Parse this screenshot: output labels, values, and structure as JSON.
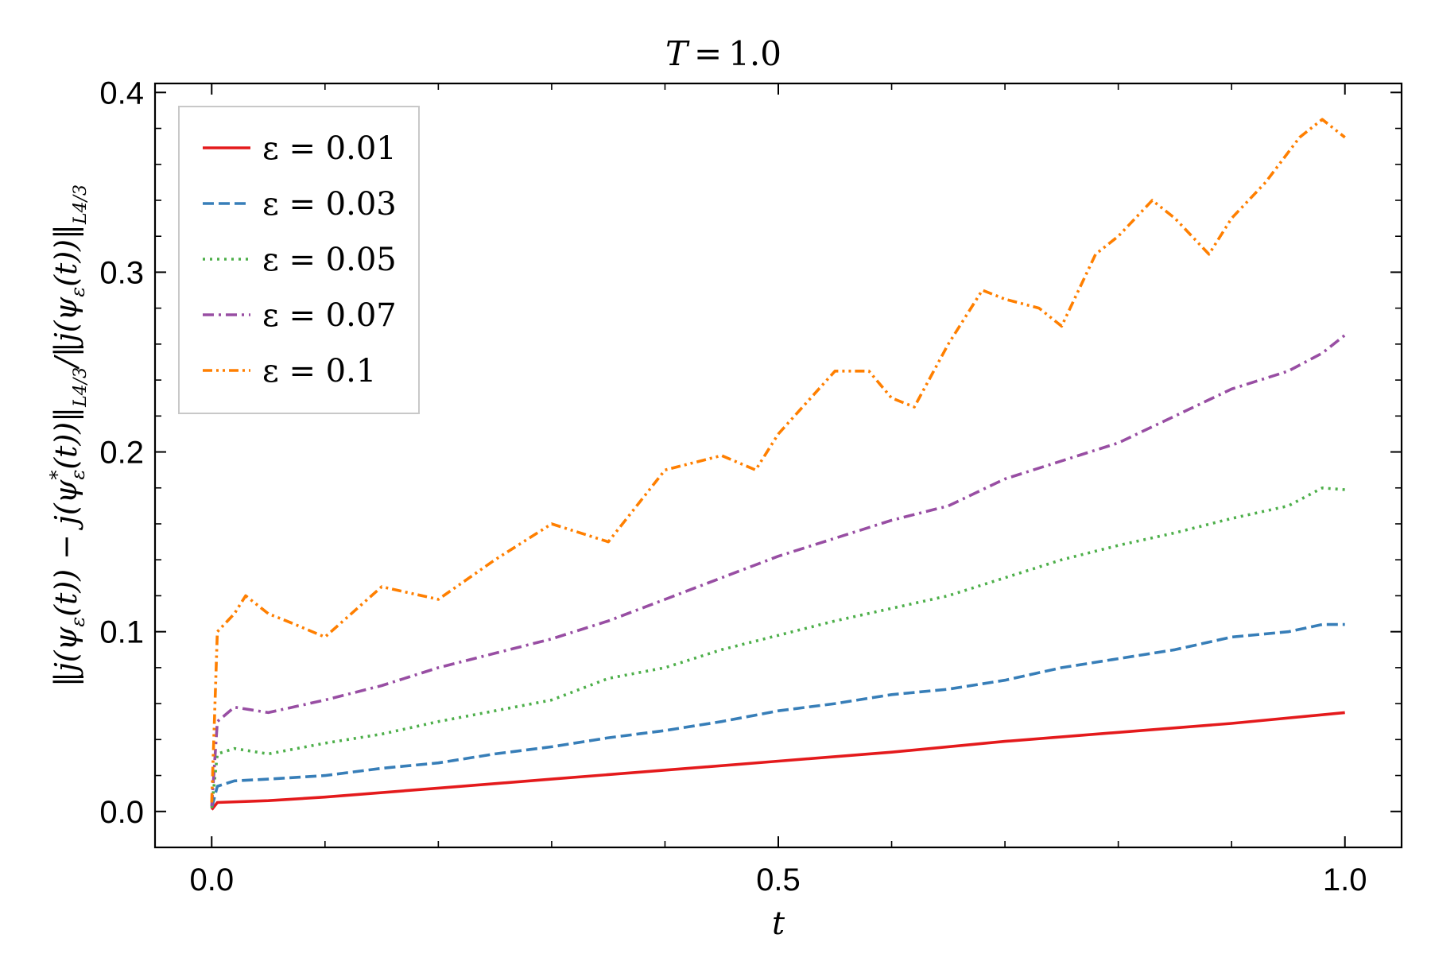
{
  "chart_data": {
    "type": "line",
    "title": "T = 1.0",
    "xlabel": "t",
    "ylabel": "‖j(ψε(t)) − j(ψ*ε(t))‖L4/3 / ‖j(ψε(t))‖L4/3",
    "xlim": [
      -0.05,
      1.05
    ],
    "ylim": [
      -0.02,
      0.405
    ],
    "xticks": [
      0.0,
      0.5,
      1.0
    ],
    "xtick_labels": [
      "0.0",
      "0.5",
      "1.0"
    ],
    "yticks": [
      0.0,
      0.1,
      0.2,
      0.3,
      0.4
    ],
    "ytick_labels": [
      "0.0",
      "0.1",
      "0.2",
      "0.3",
      "0.4"
    ],
    "grid": false,
    "legend_position": "top-left",
    "series": [
      {
        "name": "ε = 0.01",
        "color": "#e41a1c",
        "dash": "solid",
        "x": [
          0.0,
          0.005,
          0.05,
          0.1,
          0.2,
          0.3,
          0.4,
          0.5,
          0.6,
          0.7,
          0.8,
          0.9,
          1.0
        ],
        "y": [
          0.001,
          0.005,
          0.006,
          0.008,
          0.013,
          0.018,
          0.023,
          0.028,
          0.033,
          0.039,
          0.044,
          0.049,
          0.055
        ]
      },
      {
        "name": "ε = 0.03",
        "color": "#377eb8",
        "dash": "dashed",
        "x": [
          0.0,
          0.005,
          0.02,
          0.05,
          0.1,
          0.15,
          0.2,
          0.25,
          0.3,
          0.35,
          0.4,
          0.45,
          0.5,
          0.55,
          0.6,
          0.65,
          0.7,
          0.75,
          0.8,
          0.85,
          0.9,
          0.95,
          0.98,
          1.0
        ],
        "y": [
          0.002,
          0.014,
          0.017,
          0.018,
          0.02,
          0.024,
          0.027,
          0.032,
          0.036,
          0.041,
          0.045,
          0.05,
          0.056,
          0.06,
          0.065,
          0.068,
          0.073,
          0.08,
          0.085,
          0.09,
          0.097,
          0.1,
          0.104,
          0.104
        ]
      },
      {
        "name": "ε = 0.05",
        "color": "#4daf4a",
        "dash": "dotted",
        "x": [
          0.0,
          0.005,
          0.02,
          0.05,
          0.1,
          0.15,
          0.2,
          0.25,
          0.3,
          0.35,
          0.4,
          0.45,
          0.5,
          0.55,
          0.6,
          0.65,
          0.7,
          0.75,
          0.8,
          0.85,
          0.9,
          0.95,
          0.98,
          1.0
        ],
        "y": [
          0.002,
          0.032,
          0.035,
          0.032,
          0.038,
          0.043,
          0.05,
          0.056,
          0.062,
          0.074,
          0.08,
          0.09,
          0.098,
          0.106,
          0.113,
          0.12,
          0.13,
          0.14,
          0.148,
          0.155,
          0.163,
          0.17,
          0.18,
          0.179
        ]
      },
      {
        "name": "ε = 0.07",
        "color": "#984ea3",
        "dash": "dashdot",
        "x": [
          0.0,
          0.005,
          0.02,
          0.05,
          0.1,
          0.15,
          0.2,
          0.25,
          0.3,
          0.35,
          0.4,
          0.45,
          0.5,
          0.55,
          0.6,
          0.65,
          0.7,
          0.75,
          0.8,
          0.85,
          0.9,
          0.95,
          0.98,
          1.0
        ],
        "y": [
          0.003,
          0.05,
          0.058,
          0.055,
          0.062,
          0.07,
          0.08,
          0.088,
          0.096,
          0.106,
          0.118,
          0.13,
          0.142,
          0.152,
          0.162,
          0.17,
          0.185,
          0.195,
          0.205,
          0.22,
          0.235,
          0.245,
          0.255,
          0.265
        ]
      },
      {
        "name": "ε = 0.1",
        "color": "#ff7f00",
        "dash": "dashdotdot",
        "x": [
          0.0,
          0.005,
          0.02,
          0.03,
          0.05,
          0.07,
          0.1,
          0.15,
          0.2,
          0.25,
          0.3,
          0.35,
          0.4,
          0.45,
          0.48,
          0.5,
          0.55,
          0.58,
          0.6,
          0.62,
          0.65,
          0.68,
          0.7,
          0.73,
          0.75,
          0.78,
          0.8,
          0.83,
          0.85,
          0.88,
          0.9,
          0.93,
          0.96,
          0.98,
          1.0
        ],
        "y": [
          0.005,
          0.1,
          0.11,
          0.12,
          0.11,
          0.105,
          0.097,
          0.125,
          0.118,
          0.14,
          0.16,
          0.15,
          0.19,
          0.198,
          0.19,
          0.21,
          0.245,
          0.245,
          0.23,
          0.225,
          0.26,
          0.29,
          0.285,
          0.28,
          0.27,
          0.31,
          0.32,
          0.34,
          0.33,
          0.31,
          0.33,
          0.35,
          0.375,
          0.385,
          0.375
        ]
      }
    ]
  }
}
